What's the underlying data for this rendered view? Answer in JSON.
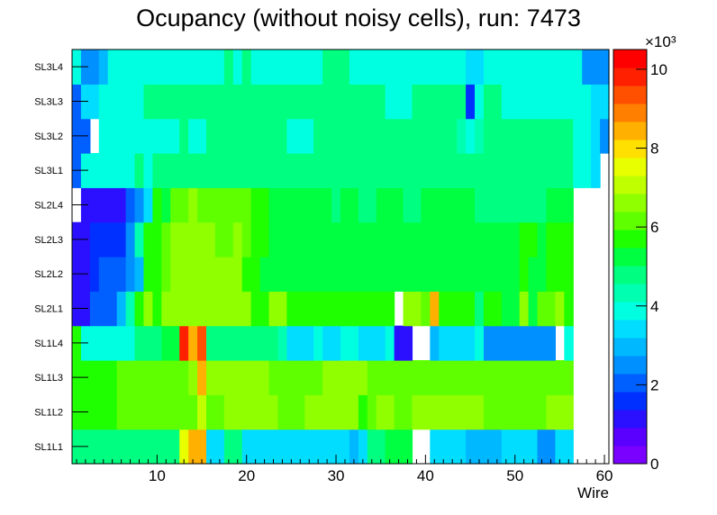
{
  "chart_data": {
    "type": "heatmap",
    "title": "Ocupancy (without noisy cells), run: 7473",
    "xlabel": "Wire",
    "xlim": [
      0.5,
      60.5
    ],
    "x_ticks": [
      "10",
      "20",
      "30",
      "40",
      "50",
      "60"
    ],
    "x_tick_values": [
      10,
      20,
      30,
      40,
      50,
      60
    ],
    "rows": [
      "SL1L1",
      "SL1L2",
      "SL1L3",
      "SL1L4",
      "SL2L1",
      "SL2L2",
      "SL2L3",
      "SL2L4",
      "SL3L1",
      "SL3L2",
      "SL3L3",
      "SL3L4"
    ],
    "colorbar": {
      "min": 0,
      "max": 10500,
      "ticks": [
        "0",
        "2",
        "4",
        "6",
        "8",
        "10"
      ],
      "tick_values": [
        0,
        2000,
        4000,
        6000,
        8000,
        10000
      ],
      "exponent": "×10³"
    },
    "cell_values_unit": "counts",
    "values": {
      "SL1L1": [
        5000,
        5000,
        4800,
        4800,
        4800,
        4800,
        4600,
        4600,
        4600,
        4600,
        4600,
        4600,
        7500,
        8600,
        8600,
        3500,
        3500,
        4600,
        4600,
        3500,
        3500,
        3500,
        3500,
        3500,
        3300,
        3300,
        3300,
        3300,
        3300,
        3300,
        3300,
        2900,
        3300,
        5000,
        5000,
        5300,
        5300,
        5300,
        null,
        null,
        3300,
        3300,
        3300,
        3300,
        2800,
        2800,
        2800,
        2800,
        3300,
        3300,
        3300,
        3300,
        2600,
        2600,
        3500,
        3500,
        null,
        null,
        null,
        null
      ],
      "SL1L2": [
        5800,
        5800,
        5800,
        5800,
        5800,
        6200,
        6200,
        6200,
        6200,
        6200,
        6200,
        6200,
        6200,
        6200,
        7200,
        6200,
        6200,
        6400,
        6400,
        6400,
        6400,
        6400,
        6400,
        6000,
        6000,
        6000,
        6400,
        6400,
        6400,
        6400,
        6400,
        6400,
        5800,
        6200,
        6400,
        6400,
        6200,
        6200,
        6400,
        6400,
        6400,
        6400,
        6400,
        6400,
        6400,
        6400,
        6200,
        6200,
        6200,
        6200,
        6200,
        6200,
        6200,
        6400,
        6400,
        6800,
        null,
        null,
        null,
        null
      ],
      "SL1L3": [
        5800,
        5800,
        5800,
        5800,
        5800,
        6000,
        6000,
        6000,
        6000,
        6000,
        6000,
        6000,
        6000,
        6800,
        8600,
        6400,
        6400,
        6400,
        6400,
        6400,
        6400,
        6400,
        6000,
        6000,
        6000,
        6000,
        6000,
        6000,
        6400,
        6400,
        6400,
        6400,
        6400,
        6000,
        6000,
        6000,
        6000,
        6000,
        6000,
        6000,
        6000,
        6000,
        6000,
        6000,
        6000,
        6000,
        6000,
        6000,
        6000,
        6000,
        6000,
        6000,
        6000,
        6000,
        6000,
        6000,
        null,
        null,
        null,
        null
      ],
      "SL1L4": [
        5500,
        4100,
        4100,
        4100,
        4100,
        4100,
        4100,
        5000,
        5000,
        5000,
        5400,
        5400,
        9800,
        8600,
        9200,
        5000,
        5000,
        5000,
        5000,
        5000,
        5000,
        5000,
        5000,
        4500,
        3500,
        3500,
        3500,
        4100,
        3500,
        3500,
        4100,
        4100,
        3500,
        3500,
        3500,
        4100,
        1000,
        1000,
        null,
        null,
        2900,
        3500,
        3500,
        3500,
        3500,
        4100,
        2600,
        2600,
        2600,
        2600,
        2600,
        2600,
        2600,
        2600,
        null,
        4100,
        null,
        null,
        null,
        null
      ],
      "SL2L1": [
        1000,
        1000,
        2000,
        2000,
        2000,
        3100,
        4200,
        5800,
        6400,
        5800,
        6400,
        6400,
        6800,
        6400,
        6400,
        6400,
        6400,
        6400,
        6400,
        6400,
        5800,
        5800,
        6400,
        6400,
        5800,
        5800,
        5800,
        5800,
        5800,
        5800,
        5800,
        5800,
        5800,
        5800,
        5800,
        5800,
        null,
        6400,
        6400,
        6000,
        8400,
        5800,
        5800,
        5800,
        5800,
        4600,
        5800,
        5800,
        5200,
        5200,
        6400,
        5200,
        6000,
        6000,
        6600,
        5800,
        null,
        null,
        null,
        null
      ],
      "SL2L2": [
        1000,
        1000,
        1600,
        2000,
        2000,
        2000,
        2600,
        3100,
        5500,
        5800,
        6200,
        6600,
        6600,
        6600,
        6600,
        6600,
        6600,
        6600,
        6600,
        5800,
        5800,
        5200,
        5200,
        5200,
        5200,
        5200,
        5200,
        5200,
        5200,
        5200,
        5200,
        5200,
        5200,
        5200,
        5200,
        5200,
        5200,
        5200,
        5200,
        5200,
        5200,
        5200,
        5200,
        5200,
        5200,
        5200,
        5200,
        5200,
        5200,
        5200,
        5800,
        5200,
        5200,
        5800,
        5800,
        5800,
        null,
        null,
        null,
        null
      ],
      "SL2L3": [
        1000,
        1000,
        1600,
        1600,
        1600,
        1600,
        2600,
        4200,
        5800,
        5800,
        6200,
        6600,
        6600,
        6600,
        6600,
        6600,
        6200,
        6200,
        6600,
        6200,
        5800,
        5800,
        5200,
        5200,
        5200,
        5200,
        5200,
        5200,
        5200,
        5200,
        5200,
        5200,
        5200,
        5200,
        5200,
        5200,
        5200,
        5200,
        5200,
        5200,
        5200,
        5200,
        5200,
        5200,
        5200,
        5200,
        5200,
        5200,
        5200,
        5200,
        5800,
        5800,
        5200,
        5800,
        5800,
        5800,
        null,
        null,
        null,
        null
      ],
      "SL2L4": [
        null,
        1300,
        1300,
        1300,
        1300,
        1300,
        2100,
        2600,
        3400,
        5800,
        5400,
        6000,
        6000,
        6600,
        6000,
        6000,
        6000,
        6000,
        6000,
        6000,
        5800,
        5800,
        5400,
        5400,
        5400,
        5400,
        5400,
        5400,
        5400,
        4600,
        5400,
        5400,
        4600,
        4600,
        5400,
        5400,
        5400,
        4600,
        4600,
        5400,
        5400,
        5400,
        5400,
        5400,
        5400,
        4600,
        4600,
        4600,
        4600,
        4600,
        4600,
        4600,
        4600,
        5400,
        5400,
        5400,
        null,
        null,
        null,
        null
      ],
      "SL3L1": [
        2000,
        4100,
        4100,
        4100,
        4100,
        4100,
        4100,
        5000,
        4100,
        5000,
        5000,
        5000,
        5000,
        5000,
        5000,
        5000,
        5000,
        5000,
        5000,
        5000,
        5000,
        5000,
        5000,
        5000,
        5000,
        5000,
        5000,
        5000,
        5000,
        5000,
        5000,
        5000,
        5000,
        5000,
        5000,
        5000,
        5000,
        5000,
        5000,
        5000,
        5000,
        5000,
        5000,
        5000,
        5000,
        5000,
        5000,
        5000,
        5000,
        5000,
        5000,
        5000,
        5000,
        5000,
        5000,
        5000,
        4100,
        4100,
        3500,
        null
      ],
      "SL3L2": [
        2000,
        2000,
        null,
        4100,
        4100,
        4100,
        4100,
        4100,
        4100,
        4100,
        4100,
        4100,
        5000,
        4100,
        4100,
        5000,
        5000,
        5000,
        5000,
        5000,
        5000,
        5000,
        5000,
        5000,
        4100,
        4100,
        4100,
        5000,
        5000,
        5000,
        5000,
        5000,
        5000,
        5000,
        5000,
        5000,
        5000,
        5000,
        5000,
        5000,
        5000,
        5000,
        5000,
        4500,
        4100,
        4500,
        5000,
        5000,
        5000,
        5000,
        5000,
        5000,
        5000,
        5000,
        5000,
        5000,
        4100,
        4100,
        3500,
        2600
      ],
      "SL3L3": [
        2000,
        3500,
        3500,
        4100,
        4100,
        4100,
        4100,
        4100,
        5000,
        5000,
        5000,
        5000,
        5000,
        5000,
        5000,
        5000,
        5000,
        5000,
        5000,
        5000,
        5000,
        5000,
        5000,
        5000,
        5000,
        5000,
        5000,
        5000,
        5000,
        5000,
        5000,
        5000,
        5000,
        5000,
        5000,
        4100,
        4100,
        4100,
        5000,
        5000,
        5000,
        5000,
        5000,
        5000,
        1600,
        4100,
        5000,
        5000,
        4100,
        4100,
        4100,
        4100,
        4100,
        4100,
        4100,
        4100,
        4100,
        4100,
        3500,
        3500
      ],
      "SL3L4": [
        4100,
        2600,
        2600,
        3100,
        4100,
        4100,
        4100,
        4100,
        4100,
        4100,
        4100,
        4100,
        4100,
        4100,
        4100,
        4100,
        4100,
        5000,
        4100,
        5000,
        4100,
        4100,
        4100,
        4100,
        4100,
        4100,
        4100,
        4100,
        5000,
        5000,
        5000,
        4100,
        4100,
        4100,
        4100,
        4100,
        4100,
        4100,
        4100,
        4100,
        4100,
        4100,
        4100,
        4100,
        3500,
        3500,
        4100,
        4100,
        4100,
        4100,
        4100,
        4100,
        4100,
        4100,
        4100,
        4100,
        4100,
        2600,
        2600,
        2600
      ]
    }
  }
}
